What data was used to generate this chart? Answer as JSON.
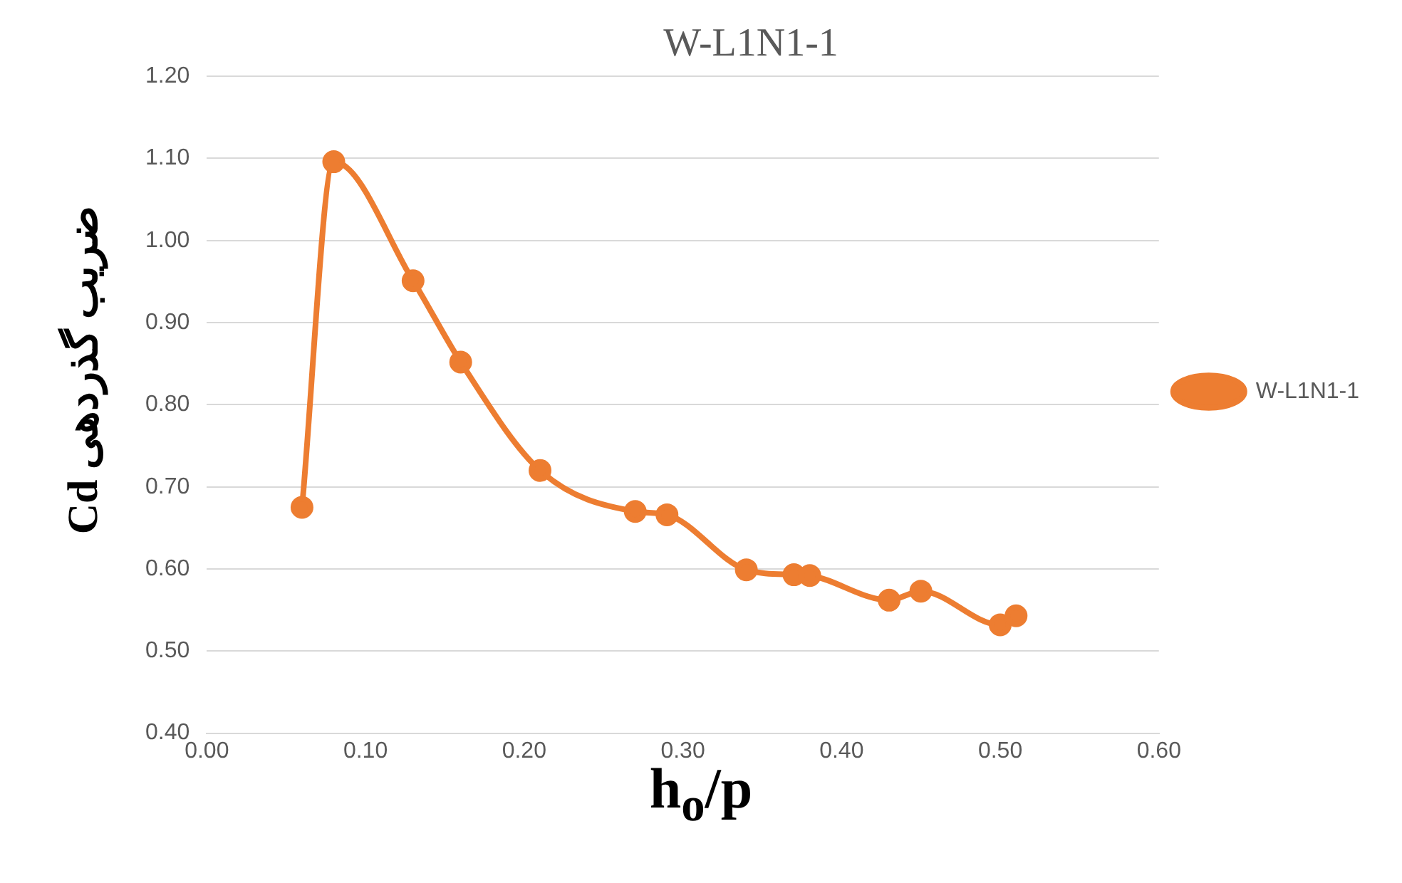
{
  "chart_data": {
    "type": "line",
    "title": "W-L1N1-1",
    "xlabel": "h$_{o}$/p",
    "ylabel": "Cd ضریب گذردهی",
    "series": [
      {
        "name": "W-L1N1-1",
        "color": "#ed7d31",
        "x": [
          0.06,
          0.08,
          0.13,
          0.16,
          0.21,
          0.27,
          0.29,
          0.34,
          0.37,
          0.38,
          0.43,
          0.45,
          0.5,
          0.51
        ],
        "values": [
          0.675,
          1.096,
          0.951,
          0.852,
          0.72,
          0.67,
          0.666,
          0.599,
          0.593,
          0.592,
          0.562,
          0.573,
          0.532,
          0.543
        ]
      }
    ],
    "xlim": [
      0,
      0.6
    ],
    "xticks": [
      {
        "value": 0,
        "label": "0.00"
      },
      {
        "value": 0.1,
        "label": "0.10"
      },
      {
        "value": 0.2,
        "label": "0.20"
      },
      {
        "value": 0.3,
        "label": "0.30"
      },
      {
        "value": 0.4,
        "label": "0.40"
      },
      {
        "value": 0.5,
        "label": "0.50"
      },
      {
        "value": 0.6,
        "label": "0.60"
      }
    ],
    "ylim": [
      0.4,
      1.2
    ],
    "yticks": [
      {
        "value": 0.4,
        "label": "0.40"
      },
      {
        "value": 0.5,
        "label": "0.50"
      },
      {
        "value": 0.6,
        "label": "0.60"
      },
      {
        "value": 0.7,
        "label": "0.70"
      },
      {
        "value": 0.8,
        "label": "0.80"
      },
      {
        "value": 0.9,
        "label": "0.90"
      },
      {
        "value": 1.0,
        "label": "1.00"
      },
      {
        "value": 1.1,
        "label": "1.10"
      },
      {
        "value": 1.2,
        "label": "1.20"
      }
    ],
    "grid": "y",
    "legend": "right",
    "marker": "circle",
    "line_style": "solid"
  }
}
